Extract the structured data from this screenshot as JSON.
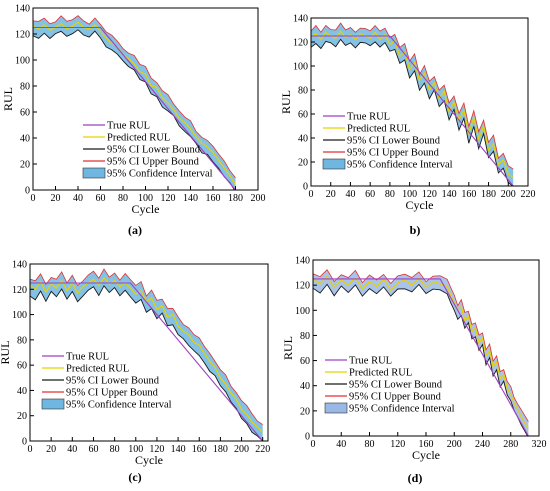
{
  "chart_data": [
    {
      "type": "line",
      "panel_label": "(a)",
      "xlabel": "Cycle",
      "ylabel": "RUL",
      "xlim": [
        0,
        200
      ],
      "ylim": [
        0,
        140
      ],
      "xticks": [
        0,
        20,
        40,
        60,
        80,
        100,
        120,
        140,
        160,
        180,
        200
      ],
      "yticks": [
        0,
        20,
        40,
        60,
        80,
        100,
        120,
        140
      ],
      "legend_position": "bottom-right",
      "legend": [
        "True RUL",
        "Predicted RUL",
        "95% CI Lower Bound",
        "95% CI Upper Bound",
        "95% Confidence Interval"
      ],
      "true_rul": {
        "x": [
          0,
          60,
          180
        ],
        "y": [
          125,
          125,
          0
        ]
      },
      "predicted_rul": {
        "x": [
          0,
          5,
          10,
          15,
          20,
          25,
          30,
          35,
          40,
          45,
          50,
          55,
          60,
          65,
          70,
          75,
          80,
          85,
          90,
          95,
          100,
          105,
          110,
          115,
          120,
          125,
          130,
          135,
          140,
          145,
          150,
          155,
          160,
          165,
          170,
          175,
          180
        ],
        "y": [
          126,
          124,
          127,
          123,
          125,
          128,
          124,
          126,
          129,
          125,
          124,
          127,
          122,
          117,
          113,
          110,
          104,
          101,
          97,
          91,
          89,
          80,
          79,
          71,
          67,
          62,
          55,
          52,
          47,
          41,
          36,
          33,
          29,
          23,
          17,
          11,
          4
        ]
      },
      "ci_half_width": 5
    },
    {
      "type": "line",
      "panel_label": "b)",
      "xlabel": "Cycle",
      "ylabel": "RUL",
      "xlim": [
        0,
        220
      ],
      "ylim": [
        0,
        140
      ],
      "xticks": [
        0,
        20,
        40,
        60,
        80,
        100,
        120,
        140,
        160,
        180,
        200,
        220
      ],
      "yticks": [
        0,
        20,
        40,
        60,
        80,
        100,
        120,
        140
      ],
      "legend_position": "bottom-left",
      "legend": [
        "True RUL",
        "Predicted RUL",
        "95% CI Lower Bound",
        "95% CI Upper Bound",
        "95% Confidence Interval"
      ],
      "true_rul": {
        "x": [
          0,
          80,
          205
        ],
        "y": [
          125,
          125,
          0
        ]
      },
      "predicted_rul": {
        "x": [
          0,
          5,
          10,
          15,
          20,
          25,
          30,
          35,
          40,
          45,
          50,
          55,
          60,
          65,
          70,
          75,
          80,
          85,
          90,
          95,
          100,
          105,
          110,
          115,
          120,
          125,
          130,
          135,
          140,
          145,
          150,
          155,
          160,
          165,
          170,
          175,
          180,
          185,
          190,
          195,
          200,
          205
        ],
        "y": [
          124,
          127,
          122,
          128,
          125,
          123,
          129,
          124,
          126,
          122,
          127,
          125,
          123,
          128,
          122,
          126,
          118,
          121,
          108,
          112,
          97,
          103,
          88,
          94,
          80,
          86,
          73,
          79,
          62,
          70,
          55,
          63,
          44,
          57,
          39,
          50,
          30,
          35,
          18,
          22,
          10,
          7
        ]
      },
      "ci_half_width": 6
    },
    {
      "type": "line",
      "panel_label": "(c)",
      "xlabel": "Cycle",
      "ylabel": "RUL",
      "xlim": [
        0,
        225
      ],
      "ylim": [
        0,
        140
      ],
      "xticks": [
        0,
        20,
        40,
        60,
        80,
        100,
        120,
        140,
        160,
        180,
        200,
        220
      ],
      "yticks": [
        0,
        20,
        40,
        60,
        80,
        100,
        120,
        140
      ],
      "legend_position": "bottom-left",
      "legend": [
        "True RUL",
        "Predicted RUL",
        "95% CI Lower Bound",
        "95% CI Upper Bound",
        "95% Confidence Interval"
      ],
      "true_rul": {
        "x": [
          0,
          95,
          220
        ],
        "y": [
          125,
          125,
          0
        ]
      },
      "predicted_rul": {
        "x": [
          0,
          5,
          10,
          15,
          20,
          25,
          30,
          35,
          40,
          45,
          50,
          55,
          60,
          65,
          70,
          75,
          80,
          85,
          90,
          95,
          100,
          105,
          110,
          115,
          120,
          125,
          130,
          135,
          140,
          145,
          150,
          155,
          160,
          165,
          170,
          175,
          180,
          185,
          190,
          195,
          200,
          205,
          210,
          215,
          220
        ],
        "y": [
          123,
          120,
          126,
          118,
          124,
          121,
          127,
          119,
          125,
          117,
          122,
          125,
          128,
          123,
          129,
          124,
          127,
          122,
          125,
          121,
          116,
          119,
          110,
          113,
          104,
          107,
          98,
          100,
          91,
          87,
          84,
          78,
          76,
          69,
          63,
          58,
          50,
          45,
          38,
          33,
          25,
          21,
          15,
          11,
          7
        ]
      },
      "ci_half_width": 6
    },
    {
      "type": "line",
      "panel_label": "(d)",
      "xlabel": "Cycle",
      "ylabel": "RUL",
      "xlim": [
        0,
        320
      ],
      "ylim": [
        0,
        140
      ],
      "xticks": [
        0,
        40,
        80,
        120,
        160,
        200,
        240,
        280,
        320
      ],
      "yticks": [
        0,
        20,
        40,
        60,
        80,
        100,
        120,
        140
      ],
      "legend_position": "bottom-left",
      "legend": [
        "True RUL",
        "Predicted RUL",
        "95% CI Lower Bound",
        "95% CI Upper Bound",
        "95% Confidence Interval"
      ],
      "true_rul": {
        "x": [
          0,
          180,
          305
        ],
        "y": [
          125,
          125,
          0
        ]
      },
      "predicted_rul": {
        "x": [
          0,
          10,
          20,
          30,
          40,
          50,
          60,
          70,
          80,
          90,
          100,
          110,
          120,
          130,
          140,
          150,
          160,
          170,
          180,
          190,
          195,
          200,
          205,
          210,
          215,
          220,
          225,
          230,
          235,
          240,
          245,
          250,
          255,
          260,
          265,
          270,
          275,
          280,
          285,
          290,
          295,
          300,
          305
        ],
        "y": [
          125,
          121,
          127,
          118,
          124,
          120,
          126,
          117,
          123,
          119,
          125,
          116,
          122,
          124,
          120,
          126,
          118,
          123,
          121,
          119,
          112,
          106,
          100,
          103,
          92,
          95,
          83,
          86,
          74,
          78,
          64,
          68,
          55,
          59,
          46,
          49,
          38,
          33,
          26,
          21,
          15,
          10,
          6
        ]
      },
      "ci_half_width": 5
    }
  ],
  "colors": {
    "true_rul": "#a040c0",
    "predicted_rul": "#e6d200",
    "ci_lower": "#1a1a1a",
    "ci_upper": "#e03030",
    "ci_fill": "#6fb6e0",
    "ci_fill_d": "#9ab8e6"
  }
}
